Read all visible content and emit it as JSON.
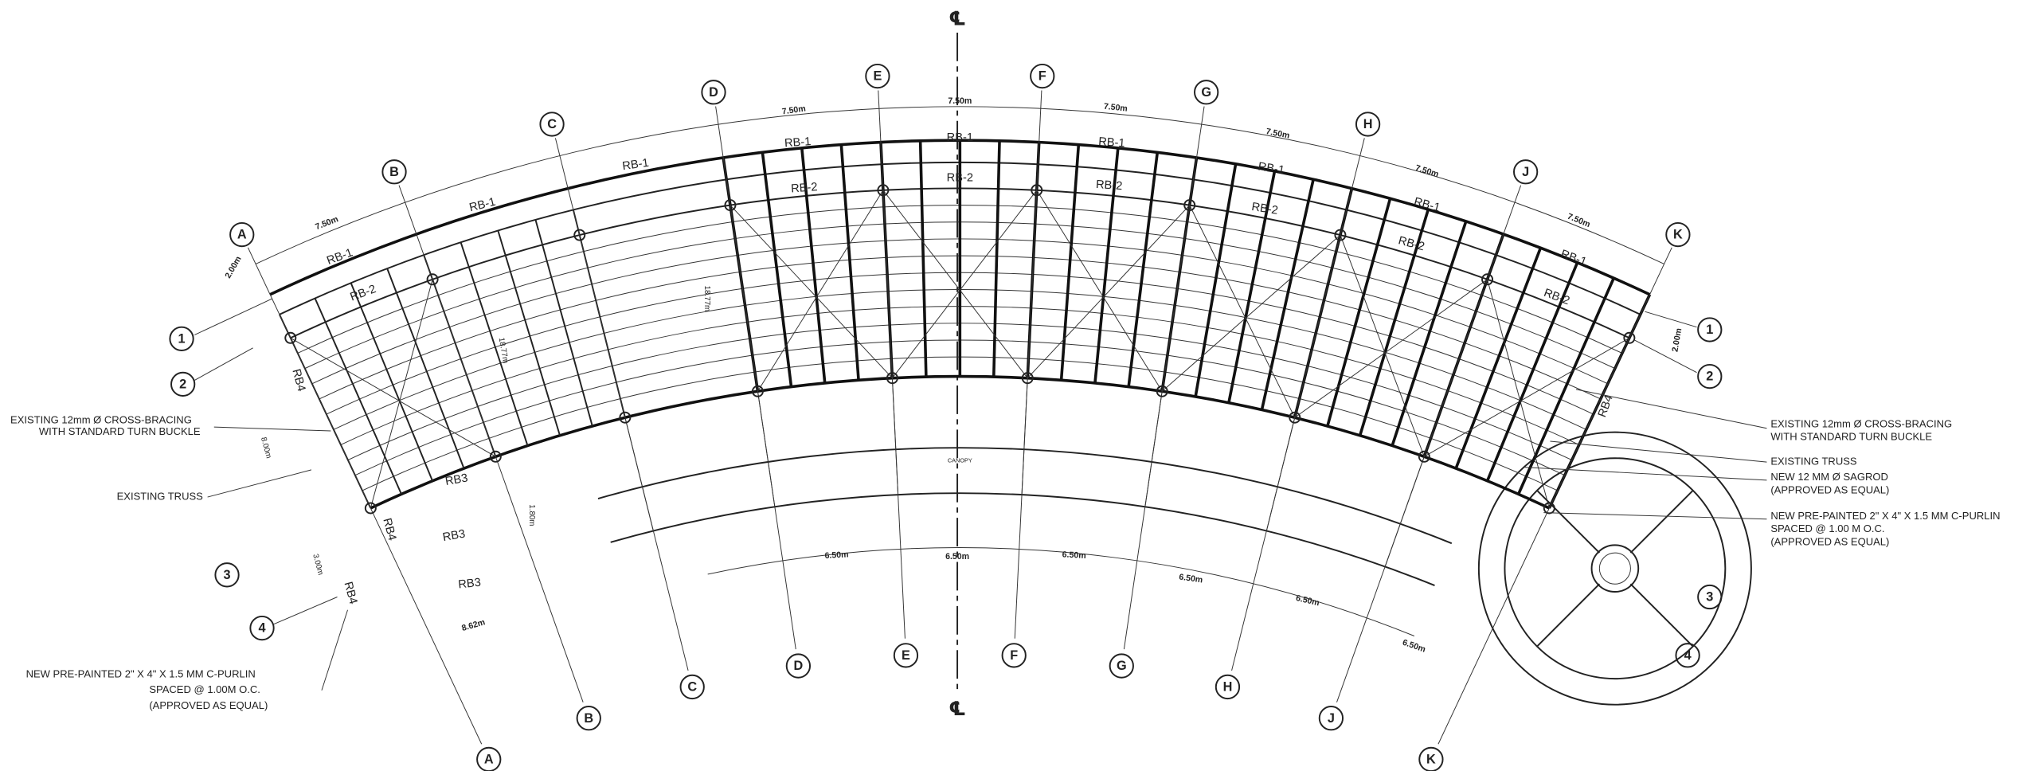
{
  "centerline": {
    "top": "℄",
    "bottom": "℄"
  },
  "grid_labels": [
    "A",
    "B",
    "C",
    "D",
    "E",
    "F",
    "G",
    "H",
    "J",
    "K"
  ],
  "rows_left": [
    "1",
    "2",
    "3",
    "4"
  ],
  "rows_right": [
    "1",
    "2",
    "3",
    "4"
  ],
  "dimensions_top": [
    "2.00m",
    "7.50m",
    "7.50m",
    "7.50m",
    "7.50m",
    "7.50m",
    "7.50m",
    "7.50m",
    "2.00m"
  ],
  "dimensions_bottom": [
    "6.50m",
    "6.50m",
    "6.50m",
    "6.50m",
    "6.50m",
    "6.50m",
    "8.62m"
  ],
  "dimensions_other": [
    "18.77m",
    "18.77m",
    "8.00m",
    "3.00m",
    "1.80m"
  ],
  "beam_labels": [
    "RB-1",
    "RB-1",
    "RB-1",
    "RB-1",
    "RB-1",
    "RB-1",
    "RB-1",
    "RB-1",
    "RB-1",
    "RB-2",
    "RB-2",
    "RB-2",
    "RB-2",
    "RB-2",
    "RB-2",
    "RB-2",
    "RB3",
    "RB3",
    "RB3",
    "RB4",
    "RB4",
    "RB4",
    "RB4"
  ],
  "canopy": "CANOPY",
  "notes_left": [
    {
      "lines": [
        "EXISTING 12mm Ø  CROSS-BRACING",
        "WITH STANDARD TURN BUCKLE"
      ]
    },
    {
      "lines": [
        "EXISTING TRUSS"
      ]
    },
    {
      "lines": [
        "NEW PRE-PAINTED 2\" X 4\" X 1.5 MM C-PURLIN",
        "SPACED @ 1.00M O.C.",
        "(APPROVED AS EQUAL)"
      ]
    }
  ],
  "notes_right": [
    {
      "lines": [
        "EXISTING 12mm Ø  CROSS-BRACING",
        "WITH STANDARD TURN BUCKLE"
      ]
    },
    {
      "lines": [
        "EXISTING  TRUSS"
      ]
    },
    {
      "lines": [
        "NEW 12 MM Ø SAGROD",
        "(APPROVED AS EQUAL)"
      ]
    },
    {
      "lines": [
        "NEW PRE-PAINTED 2\" X 4\" X 1.5 MM C-PURLIN",
        "SPACED @ 1.00 M O.C.",
        "(APPROVED AS EQUAL)"
      ]
    }
  ]
}
